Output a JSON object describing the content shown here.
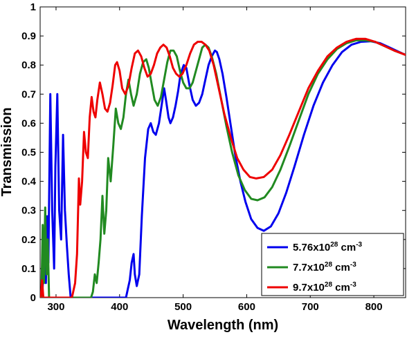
{
  "chart_data": {
    "type": "line",
    "title": "",
    "xlabel": "Wavelength (nm)",
    "ylabel": "Transmission",
    "xlim": [
      275,
      850
    ],
    "ylim": [
      0,
      1
    ],
    "xticks": [
      300,
      400,
      500,
      600,
      700,
      800
    ],
    "yticks": [
      0,
      0.1,
      0.2,
      0.3,
      0.4,
      0.5,
      0.6,
      0.7,
      0.8,
      0.9,
      1
    ],
    "xtick_labels": [
      "300",
      "400",
      "500",
      "600",
      "700",
      "800"
    ],
    "ytick_labels": [
      "0",
      "0.1",
      "0.2",
      "0.3",
      "0.4",
      "0.5",
      "0.6",
      "0.7",
      "0.8",
      "0.9",
      "1"
    ],
    "grid": false,
    "legend_position": "bottom-right",
    "series": [
      {
        "name": "5.76x10^28 cm^-3",
        "label_base": "5.76x10",
        "label_exp": "28",
        "label_unit": " cm",
        "label_unit_exp": "-3",
        "color": "#0000ee",
        "points": [
          [
            278,
            0.0
          ],
          [
            281,
            0.12
          ],
          [
            284,
            0.05
          ],
          [
            286,
            0.28
          ],
          [
            288,
            0.12
          ],
          [
            291,
            0.7
          ],
          [
            294,
            0.3
          ],
          [
            297,
            0.1
          ],
          [
            299,
            0.45
          ],
          [
            302,
            0.7
          ],
          [
            305,
            0.3
          ],
          [
            308,
            0.2
          ],
          [
            311,
            0.56
          ],
          [
            314,
            0.3
          ],
          [
            317,
            0.18
          ],
          [
            320,
            0.08
          ],
          [
            323,
            0.0
          ],
          [
            330,
            0.0
          ],
          [
            360,
            0.0
          ],
          [
            380,
            0.0
          ],
          [
            410,
            0.0
          ],
          [
            413,
            0.03
          ],
          [
            416,
            0.06
          ],
          [
            419,
            0.12
          ],
          [
            422,
            0.15
          ],
          [
            424,
            0.08
          ],
          [
            427,
            0.04
          ],
          [
            431,
            0.08
          ],
          [
            435,
            0.28
          ],
          [
            440,
            0.48
          ],
          [
            445,
            0.58
          ],
          [
            449,
            0.6
          ],
          [
            453,
            0.57
          ],
          [
            457,
            0.56
          ],
          [
            462,
            0.6
          ],
          [
            466,
            0.66
          ],
          [
            470,
            0.72
          ],
          [
            473,
            0.68
          ],
          [
            477,
            0.62
          ],
          [
            480,
            0.6
          ],
          [
            484,
            0.62
          ],
          [
            488,
            0.66
          ],
          [
            492,
            0.71
          ],
          [
            496,
            0.77
          ],
          [
            501,
            0.8
          ],
          [
            505,
            0.79
          ],
          [
            510,
            0.73
          ],
          [
            515,
            0.68
          ],
          [
            520,
            0.66
          ],
          [
            525,
            0.67
          ],
          [
            530,
            0.7
          ],
          [
            535,
            0.75
          ],
          [
            540,
            0.8
          ],
          [
            545,
            0.83
          ],
          [
            550,
            0.85
          ],
          [
            553,
            0.845
          ],
          [
            557,
            0.82
          ],
          [
            562,
            0.77
          ],
          [
            568,
            0.69
          ],
          [
            575,
            0.59
          ],
          [
            582,
            0.49
          ],
          [
            590,
            0.4
          ],
          [
            598,
            0.33
          ],
          [
            607,
            0.27
          ],
          [
            617,
            0.24
          ],
          [
            627,
            0.23
          ],
          [
            638,
            0.245
          ],
          [
            650,
            0.29
          ],
          [
            662,
            0.36
          ],
          [
            675,
            0.45
          ],
          [
            690,
            0.56
          ],
          [
            705,
            0.66
          ],
          [
            720,
            0.74
          ],
          [
            735,
            0.8
          ],
          [
            750,
            0.845
          ],
          [
            765,
            0.87
          ],
          [
            780,
            0.88
          ],
          [
            795,
            0.882
          ],
          [
            810,
            0.875
          ],
          [
            825,
            0.86
          ],
          [
            840,
            0.845
          ],
          [
            850,
            0.835
          ]
        ]
      },
      {
        "name": "7.7x10^28 cm^-3",
        "label_base": "7.7x10",
        "label_exp": "28",
        "label_unit": " cm",
        "label_unit_exp": "-3",
        "color": "#218a21",
        "points": [
          [
            277,
            0.0
          ],
          [
            279,
            0.25
          ],
          [
            281,
            0.05
          ],
          [
            283,
            0.31
          ],
          [
            285,
            0.08
          ],
          [
            287,
            0.2
          ],
          [
            289,
            0.0
          ],
          [
            300,
            0.0
          ],
          [
            340,
            0.0
          ],
          [
            355,
            0.0
          ],
          [
            358,
            0.02
          ],
          [
            361,
            0.08
          ],
          [
            364,
            0.05
          ],
          [
            367,
            0.12
          ],
          [
            370,
            0.2
          ],
          [
            373,
            0.35
          ],
          [
            376,
            0.22
          ],
          [
            379,
            0.3
          ],
          [
            382,
            0.48
          ],
          [
            386,
            0.4
          ],
          [
            390,
            0.52
          ],
          [
            394,
            0.65
          ],
          [
            398,
            0.6
          ],
          [
            402,
            0.58
          ],
          [
            406,
            0.62
          ],
          [
            410,
            0.7
          ],
          [
            414,
            0.75
          ],
          [
            418,
            0.7
          ],
          [
            422,
            0.66
          ],
          [
            427,
            0.7
          ],
          [
            432,
            0.77
          ],
          [
            437,
            0.81
          ],
          [
            442,
            0.82
          ],
          [
            446,
            0.79
          ],
          [
            450,
            0.74
          ],
          [
            455,
            0.68
          ],
          [
            460,
            0.66
          ],
          [
            465,
            0.69
          ],
          [
            470,
            0.75
          ],
          [
            475,
            0.81
          ],
          [
            480,
            0.85
          ],
          [
            485,
            0.85
          ],
          [
            490,
            0.83
          ],
          [
            495,
            0.78
          ],
          [
            500,
            0.74
          ],
          [
            505,
            0.72
          ],
          [
            510,
            0.72
          ],
          [
            515,
            0.74
          ],
          [
            520,
            0.78
          ],
          [
            525,
            0.82
          ],
          [
            530,
            0.86
          ],
          [
            535,
            0.87
          ],
          [
            540,
            0.86
          ],
          [
            545,
            0.83
          ],
          [
            552,
            0.77
          ],
          [
            560,
            0.68
          ],
          [
            568,
            0.59
          ],
          [
            577,
            0.5
          ],
          [
            587,
            0.42
          ],
          [
            597,
            0.37
          ],
          [
            607,
            0.34
          ],
          [
            617,
            0.335
          ],
          [
            628,
            0.345
          ],
          [
            640,
            0.38
          ],
          [
            653,
            0.44
          ],
          [
            667,
            0.52
          ],
          [
            682,
            0.61
          ],
          [
            697,
            0.7
          ],
          [
            712,
            0.77
          ],
          [
            727,
            0.82
          ],
          [
            742,
            0.855
          ],
          [
            757,
            0.875
          ],
          [
            772,
            0.885
          ],
          [
            787,
            0.885
          ],
          [
            802,
            0.88
          ],
          [
            817,
            0.865
          ],
          [
            832,
            0.85
          ],
          [
            850,
            0.835
          ]
        ]
      },
      {
        "name": "9.7x10^28 cm^-3",
        "label_base": "9.7x10",
        "label_exp": "28",
        "label_unit": " cm",
        "label_unit_exp": "-3",
        "color": "#ee0000",
        "points": [
          [
            276,
            0.0
          ],
          [
            278,
            0.06
          ],
          [
            280,
            0.0
          ],
          [
            300,
            0.0
          ],
          [
            320,
            0.0
          ],
          [
            325,
            0.0
          ],
          [
            330,
            0.05
          ],
          [
            333,
            0.15
          ],
          [
            336,
            0.41
          ],
          [
            338,
            0.32
          ],
          [
            341,
            0.4
          ],
          [
            344,
            0.57
          ],
          [
            347,
            0.5
          ],
          [
            350,
            0.48
          ],
          [
            353,
            0.62
          ],
          [
            356,
            0.69
          ],
          [
            359,
            0.64
          ],
          [
            362,
            0.62
          ],
          [
            365,
            0.68
          ],
          [
            369,
            0.74
          ],
          [
            373,
            0.7
          ],
          [
            377,
            0.65
          ],
          [
            381,
            0.64
          ],
          [
            385,
            0.67
          ],
          [
            389,
            0.73
          ],
          [
            393,
            0.8
          ],
          [
            396,
            0.81
          ],
          [
            400,
            0.78
          ],
          [
            404,
            0.72
          ],
          [
            409,
            0.7
          ],
          [
            414,
            0.73
          ],
          [
            419,
            0.79
          ],
          [
            424,
            0.84
          ],
          [
            429,
            0.85
          ],
          [
            434,
            0.83
          ],
          [
            439,
            0.79
          ],
          [
            444,
            0.76
          ],
          [
            449,
            0.77
          ],
          [
            454,
            0.8
          ],
          [
            459,
            0.84
          ],
          [
            464,
            0.86
          ],
          [
            469,
            0.87
          ],
          [
            474,
            0.86
          ],
          [
            479,
            0.83
          ],
          [
            484,
            0.79
          ],
          [
            489,
            0.77
          ],
          [
            494,
            0.76
          ],
          [
            499,
            0.77
          ],
          [
            505,
            0.8
          ],
          [
            511,
            0.84
          ],
          [
            517,
            0.87
          ],
          [
            523,
            0.88
          ],
          [
            529,
            0.88
          ],
          [
            535,
            0.87
          ],
          [
            541,
            0.85
          ],
          [
            548,
            0.8
          ],
          [
            556,
            0.72
          ],
          [
            565,
            0.63
          ],
          [
            575,
            0.55
          ],
          [
            585,
            0.48
          ],
          [
            595,
            0.44
          ],
          [
            605,
            0.415
          ],
          [
            615,
            0.41
          ],
          [
            627,
            0.415
          ],
          [
            640,
            0.44
          ],
          [
            653,
            0.49
          ],
          [
            667,
            0.56
          ],
          [
            682,
            0.64
          ],
          [
            697,
            0.72
          ],
          [
            712,
            0.78
          ],
          [
            727,
            0.83
          ],
          [
            742,
            0.86
          ],
          [
            757,
            0.88
          ],
          [
            772,
            0.89
          ],
          [
            787,
            0.89
          ],
          [
            802,
            0.88
          ],
          [
            817,
            0.865
          ],
          [
            832,
            0.85
          ],
          [
            850,
            0.835
          ]
        ]
      }
    ]
  }
}
